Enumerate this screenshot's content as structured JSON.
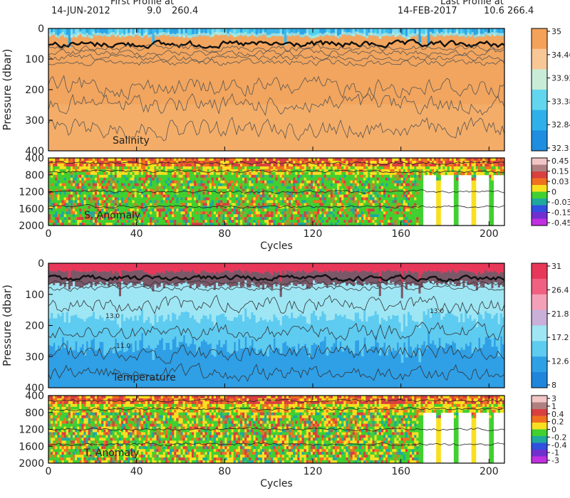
{
  "header": {
    "first_title": "First Profile at",
    "first_date": "14-JUN-2012",
    "first_lat": "9.0",
    "first_lon": "260.4",
    "last_title": "Last Profile at",
    "last_date": "14-FEB-2017",
    "last_lat": "10.6",
    "last_lon": "266.4"
  },
  "chart_data": [
    {
      "type": "heatmap",
      "panel": "salinity",
      "ylabel": "Pressure (dbar)",
      "panel_label": "Salinity",
      "x_range": [
        0,
        207
      ],
      "y_range": [
        0,
        400
      ],
      "x_ticks": [
        "0",
        "40",
        "80",
        "120",
        "160",
        "200"
      ],
      "y_ticks": [
        "0",
        "100",
        "200",
        "300",
        "400"
      ],
      "colorbar_labels": [
        "35",
        "34.46",
        "33.92",
        "33.38",
        "32.84",
        "32.3"
      ],
      "colorbar_colors": [
        "#f4a259",
        "#f8c796",
        "#c9ecd8",
        "#61d6ee",
        "#2fb0ea",
        "#1f8de0"
      ]
    },
    {
      "type": "heatmap",
      "panel": "salinity-anomaly",
      "panel_label": "S. Anomaly",
      "x_range": [
        0,
        207
      ],
      "y_range": [
        400,
        2000
      ],
      "xlabel": "Cycles",
      "x_ticks": [
        "0",
        "40",
        "80",
        "120",
        "160",
        "200"
      ],
      "y_ticks": [
        "400",
        "800",
        "1200",
        "1600",
        "2000"
      ],
      "colorbar_labels": [
        "0.45",
        "0.15",
        "0.03",
        "0",
        "-0.03",
        "-0.15",
        "-0.45"
      ],
      "colorbar_colors": [
        "#f2c6c6",
        "#b08080",
        "#d84040",
        "#f07020",
        "#f8e020",
        "#40d030",
        "#1ea8a0",
        "#3050e0",
        "#7030d0",
        "#c030e0"
      ]
    },
    {
      "type": "heatmap",
      "panel": "temperature",
      "ylabel": "Pressure (dbar)",
      "panel_label": "Temperature",
      "x_range": [
        0,
        207
      ],
      "y_range": [
        0,
        400
      ],
      "x_ticks": [
        "0",
        "40",
        "80",
        "120",
        "160",
        "200"
      ],
      "y_ticks": [
        "0",
        "100",
        "200",
        "300",
        "400"
      ],
      "contour_labels": [
        "13.0",
        "11.0"
      ],
      "colorbar_labels": [
        "31",
        "26.4",
        "21.8",
        "17.2",
        "12.6",
        "8"
      ],
      "colorbar_colors": [
        "#e8385a",
        "#f06080",
        "#f4a0b8",
        "#c8b0d8",
        "#9ee6f4",
        "#5ecbf0",
        "#2f9fe6",
        "#1f86dc"
      ]
    },
    {
      "type": "heatmap",
      "panel": "temperature-anomaly",
      "panel_label": "T. Anomaly",
      "x_range": [
        0,
        207
      ],
      "y_range": [
        400,
        2000
      ],
      "xlabel": "Cycles",
      "x_ticks": [
        "0",
        "40",
        "80",
        "120",
        "160",
        "200"
      ],
      "y_ticks": [
        "400",
        "800",
        "1200",
        "1600",
        "2000"
      ],
      "colorbar_labels": [
        "3",
        "1",
        "0.4",
        "0.2",
        "0",
        "-0.2",
        "-0.4",
        "-1",
        "-3"
      ],
      "colorbar_colors": [
        "#f2c6c6",
        "#b08080",
        "#d84040",
        "#f07020",
        "#f8e020",
        "#40d030",
        "#1ea8a0",
        "#3050e0",
        "#7030d0",
        "#c030e0"
      ]
    }
  ]
}
